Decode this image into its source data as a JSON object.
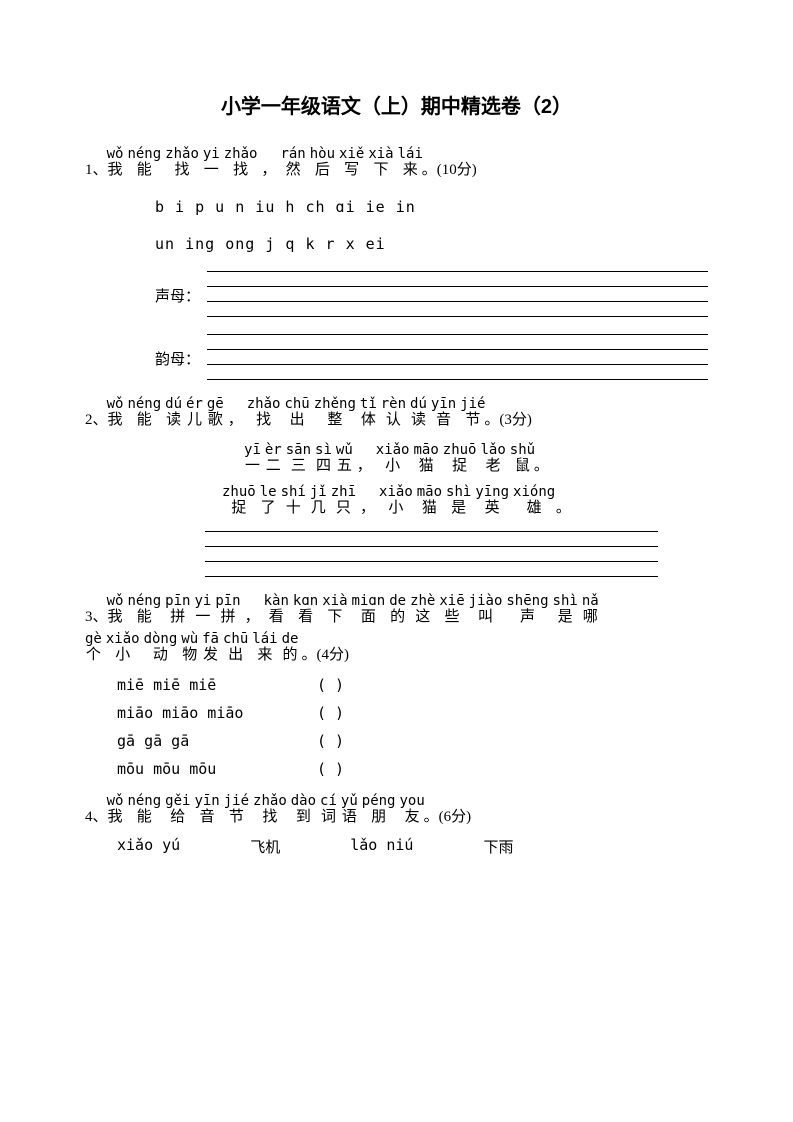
{
  "title": "小学一年级语文（上）期中精选卷（2）",
  "q1": {
    "num": "1、",
    "pinyin": [
      "wǒ",
      "néng",
      "zhǎo",
      "yi",
      "zhǎo",
      "",
      "rán",
      "hòu",
      "xiě",
      "xià",
      "lái"
    ],
    "chars": [
      "我",
      "能",
      "找",
      "一",
      "找",
      "，",
      "然",
      "后",
      "写",
      "下",
      "来"
    ],
    "tail": "。(10分)",
    "row1": "b  i  p  u  n  iu  h  ch  ɑi  ie  in",
    "row2": "un  ing  ong  j  q  k  r  x  ei",
    "label_shengmu": "声母：",
    "label_yunmu": "韵母："
  },
  "q2": {
    "num": "2、",
    "pinyin": [
      "wǒ",
      "néng",
      "dú",
      "ér",
      "gē",
      "",
      "zhǎo",
      "chū",
      "zhěng",
      "tǐ",
      "rèn",
      "dú",
      "yīn",
      "jié"
    ],
    "chars": [
      "我",
      "能",
      "读",
      "儿",
      "歌",
      "，",
      "找",
      "出",
      "整",
      "体",
      "认",
      "读",
      "音",
      "节"
    ],
    "tail": "。(3分)",
    "line1_py": [
      "yī",
      "èr",
      "sān",
      "sì",
      "wǔ",
      "",
      "xiǎo",
      "māo",
      "zhuō",
      "lǎo",
      "shǔ"
    ],
    "line1_ch": [
      "一",
      "二",
      "三",
      "四",
      "五",
      "，",
      "小",
      "猫",
      "捉",
      "老",
      "鼠"
    ],
    "line1_tail": "。",
    "line2_py": [
      "zhuō",
      "le",
      "shí",
      "jǐ",
      "zhī",
      "",
      "xiǎo",
      "māo",
      "shì",
      "yīng",
      "xióng"
    ],
    "line2_ch": [
      "捉",
      "了",
      "十",
      "几",
      "只",
      "，",
      "小",
      "猫",
      "是",
      "英",
      "雄"
    ],
    "line2_tail": " 。"
  },
  "q3": {
    "num": "3、",
    "pinyin1": [
      "wǒ",
      "néng",
      "pīn",
      "yi",
      "pīn",
      "",
      "kàn",
      "kɑn",
      "xià",
      "miɑn",
      "de",
      "zhè",
      "xiē",
      "jiào",
      "shēng",
      "shì",
      "nǎ"
    ],
    "chars1": [
      "我",
      "能",
      "拼",
      "一",
      "拼",
      "，",
      "看",
      "看",
      "下",
      "面",
      "的",
      "这",
      "些",
      "叫",
      "声",
      "是",
      "哪"
    ],
    "pinyin2": [
      "gè",
      "xiǎo",
      "dòng",
      "wù",
      "fā",
      "chū",
      "lái",
      "de"
    ],
    "chars2": [
      "个",
      "小",
      "动",
      "物",
      "发",
      "出",
      "来",
      "的"
    ],
    "tail": "。(4分)",
    "sounds": [
      {
        "s": "miē miē miē",
        "p": "(     )"
      },
      {
        "s": "miāo miāo miāo",
        "p": "(     )"
      },
      {
        "s": "gā  gā  gā",
        "p": "(     )"
      },
      {
        "s": "mōu mōu mōu",
        "p": "(     )"
      }
    ]
  },
  "q4": {
    "num": "4、",
    "pinyin": [
      "wǒ",
      "néng",
      "gěi",
      "yīn",
      "jié",
      "zhǎo",
      "dào",
      "cí",
      "yǔ",
      "péng",
      "you"
    ],
    "chars": [
      "我",
      "能",
      "给",
      "音",
      "节",
      "找",
      "到",
      "词",
      "语",
      "朋",
      "友"
    ],
    "tail": "。(6分)",
    "items": [
      "xiǎo yú",
      "飞机",
      "lǎo niú",
      "下雨"
    ]
  }
}
